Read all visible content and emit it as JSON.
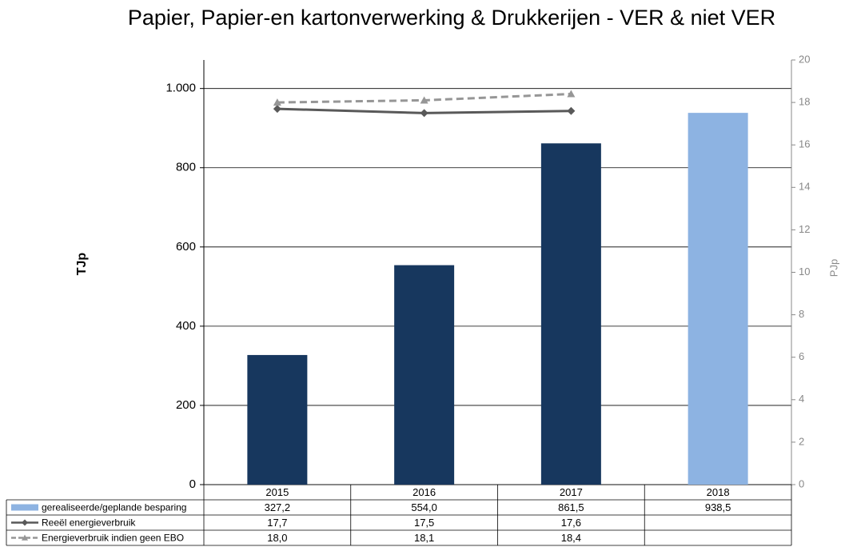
{
  "chart_data": {
    "type": "bar",
    "title": "Papier, Papier-en kartonverwerking & Drukkerijen  -  VER & niet VER",
    "ylabel": "TJp",
    "y2label": "PJp",
    "categories": [
      "2015",
      "2016",
      "2017",
      "2018"
    ],
    "ylim": [
      0,
      1072
    ],
    "yticks": [
      0,
      200,
      400,
      600,
      800,
      {
        "value": 1000,
        "label": "1.000"
      }
    ],
    "y2lim": [
      0,
      20
    ],
    "y2ticks": [
      0,
      2,
      4,
      6,
      8,
      10,
      12,
      14,
      16,
      18,
      20
    ],
    "grid": true,
    "series": [
      {
        "name": "gerealiseerde/geplande besparing",
        "type": "bar",
        "color": "#8db3e2",
        "colors": [
          "#17375e",
          "#17375e",
          "#17375e",
          "#8db3e2"
        ],
        "values": [
          327.2,
          554.0,
          861.5,
          938.5
        ],
        "value_labels": [
          "327,2",
          "554,0",
          "861,5",
          "938,5"
        ]
      },
      {
        "name": "Reeël energieverbruik",
        "type": "line",
        "axis": "y2",
        "color": "#595959",
        "marker": "diamond",
        "values": [
          17.7,
          17.5,
          17.6,
          null
        ],
        "value_labels": [
          "17,7",
          "17,5",
          "17,6",
          null
        ]
      },
      {
        "name": "Energieverbruik indien geen EBO",
        "type": "line",
        "axis": "y2",
        "color": "#969696",
        "marker": "triangle",
        "dashed": true,
        "values": [
          18.0,
          18.1,
          18.4,
          null
        ],
        "value_labels": [
          "18,0",
          "18,1",
          "18,4",
          null
        ]
      }
    ]
  }
}
